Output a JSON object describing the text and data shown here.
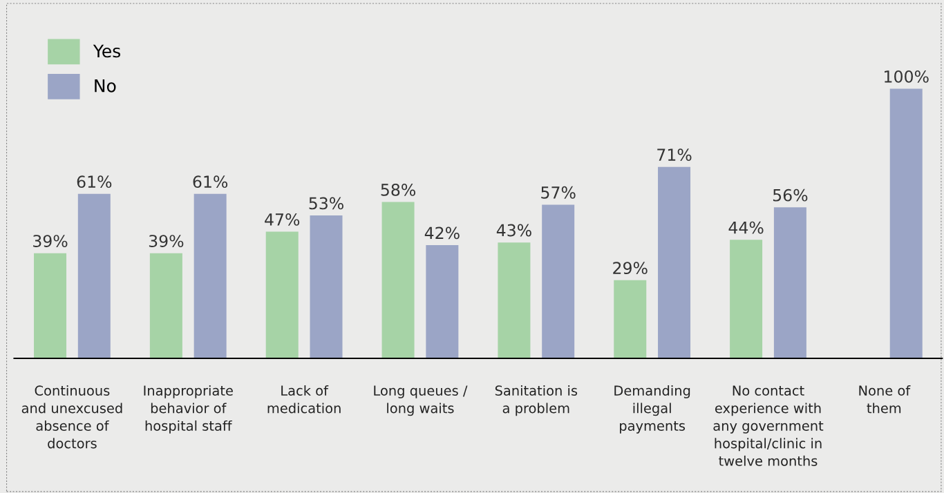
{
  "chart_data": {
    "type": "bar",
    "categories": [
      "Continuous\nand unexcused\nabsence of\ndoctors",
      "Inappropriate\nbehavior of\nhospital staff",
      "Lack of\nmedication",
      "Long queues /\nlong waits",
      "Sanitation is\na problem",
      "Demanding\nillegal\npayments",
      "No contact\nexperience with\nany government\nhospital/clinic in\ntwelve months",
      "None of\nthem"
    ],
    "series": [
      {
        "name": "Yes",
        "color": "#a6d3a6",
        "values": [
          39,
          39,
          47,
          58,
          43,
          29,
          44,
          null
        ],
        "value_labels": [
          "39%",
          "39%",
          "47%",
          "58%",
          "43%",
          "29%",
          "44%",
          null
        ]
      },
      {
        "name": "No",
        "color": "#9ba5c6",
        "values": [
          61,
          61,
          53,
          42,
          57,
          71,
          56,
          100
        ],
        "value_labels": [
          "61%",
          "61%",
          "53%",
          "42%",
          "57%",
          "71%",
          "56%",
          "100%"
        ]
      }
    ],
    "grid": false,
    "legend": "top left"
  }
}
